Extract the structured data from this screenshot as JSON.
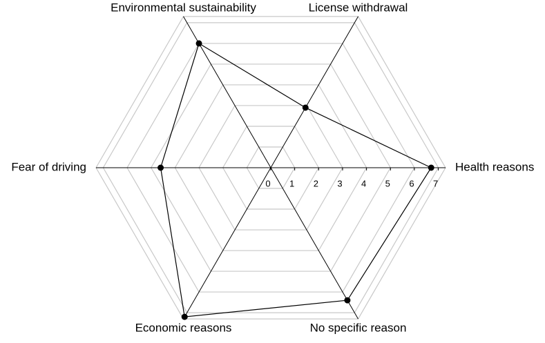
{
  "chart_data": {
    "type": "radar",
    "categories": [
      "Health reasons",
      "License withdrawal",
      "Environmental sustainability",
      "Fear of driving",
      "Economic reasons",
      "No specific reason"
    ],
    "values": [
      6.7,
      2.9,
      6.0,
      4.6,
      7.2,
      6.4
    ],
    "color": "#000000",
    "rlim": [
      0,
      7.3
    ],
    "rticks": [
      0,
      1,
      2,
      3,
      4,
      5,
      6,
      7
    ],
    "grid": true
  }
}
